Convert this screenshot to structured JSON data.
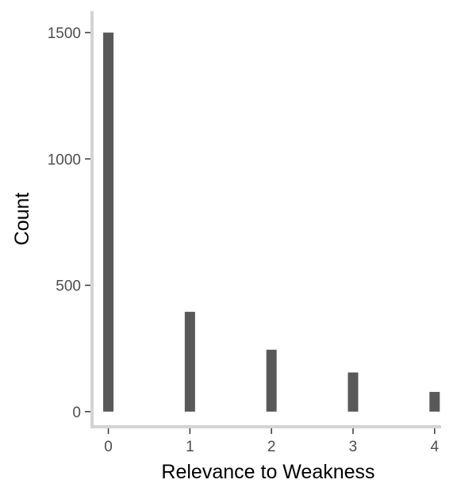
{
  "chart_data": {
    "type": "bar",
    "categories": [
      "0",
      "1",
      "2",
      "3",
      "4"
    ],
    "x": [
      0,
      1,
      2,
      3,
      4
    ],
    "values": [
      1500,
      395,
      245,
      155,
      78
    ],
    "title": "",
    "xlabel": "Relevance to Weakness",
    "ylabel": "Count",
    "xlim": [
      -0.2,
      4.08
    ],
    "ylim": [
      -60,
      1585
    ],
    "yticks": [
      0,
      500,
      1000,
      1500
    ],
    "xticks": [
      0,
      1,
      2,
      3,
      4
    ],
    "grid": false,
    "legend": "none",
    "colors": {
      "bar": "#595959",
      "axis": "#d3d3d3",
      "tick": "#333333"
    }
  }
}
